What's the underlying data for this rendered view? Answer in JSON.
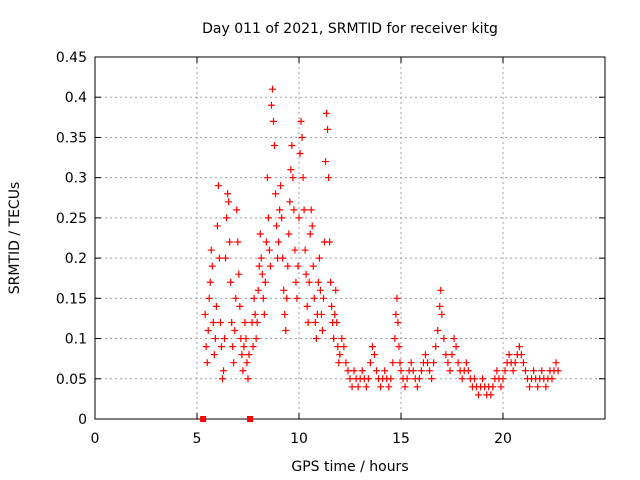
{
  "chart_data": {
    "type": "scatter",
    "title": "Day 011 of 2021, SRMTID for receiver kitg",
    "xlabel": "GPS time / hours",
    "ylabel": "SRMTID / TECUs",
    "xlim": [
      0,
      25
    ],
    "ylim": [
      0,
      0.45
    ],
    "grid": true,
    "x_ticks": [
      0,
      5,
      10,
      15,
      20
    ],
    "x_tick_labels": [
      "0",
      "5",
      "10",
      "15",
      "20"
    ],
    "y_ticks": [
      0,
      0.05,
      0.1,
      0.15,
      0.2,
      0.25,
      0.3,
      0.35,
      0.4,
      0.45
    ],
    "y_tick_labels": [
      "0",
      "0.05",
      "0.1",
      "0.15",
      "0.2",
      "0.25",
      "0.3",
      "0.35",
      "0.4",
      "0.45"
    ],
    "marker_color": "#ff0000",
    "data_gap_markers": [
      {
        "x": 5.3,
        "y": 0
      },
      {
        "x": 7.6,
        "y": 0
      }
    ],
    "series": [
      {
        "name": "SRMTID",
        "points": [
          [
            5.4,
            0.13
          ],
          [
            5.45,
            0.09
          ],
          [
            5.5,
            0.07
          ],
          [
            5.55,
            0.11
          ],
          [
            5.6,
            0.15
          ],
          [
            5.65,
            0.17
          ],
          [
            5.7,
            0.21
          ],
          [
            5.75,
            0.19
          ],
          [
            5.8,
            0.12
          ],
          [
            5.85,
            0.08
          ],
          [
            5.9,
            0.1
          ],
          [
            5.95,
            0.14
          ],
          [
            6.0,
            0.24
          ],
          [
            6.05,
            0.29
          ],
          [
            6.1,
            0.2
          ],
          [
            6.15,
            0.12
          ],
          [
            6.2,
            0.09
          ],
          [
            6.25,
            0.05
          ],
          [
            6.3,
            0.06
          ],
          [
            6.35,
            0.1
          ],
          [
            6.4,
            0.2
          ],
          [
            6.45,
            0.25
          ],
          [
            6.5,
            0.28
          ],
          [
            6.55,
            0.27
          ],
          [
            6.6,
            0.22
          ],
          [
            6.65,
            0.17
          ],
          [
            6.7,
            0.12
          ],
          [
            6.75,
            0.09
          ],
          [
            6.8,
            0.07
          ],
          [
            6.85,
            0.11
          ],
          [
            6.9,
            0.15
          ],
          [
            6.95,
            0.26
          ],
          [
            7.0,
            0.22
          ],
          [
            7.05,
            0.18
          ],
          [
            7.1,
            0.14
          ],
          [
            7.15,
            0.1
          ],
          [
            7.2,
            0.08
          ],
          [
            7.25,
            0.06
          ],
          [
            7.3,
            0.09
          ],
          [
            7.35,
            0.12
          ],
          [
            7.4,
            0.1
          ],
          [
            7.45,
            0.07
          ],
          [
            7.5,
            0.05
          ],
          [
            7.55,
            0.08
          ],
          [
            7.7,
            0.12
          ],
          [
            7.75,
            0.09
          ],
          [
            7.8,
            0.15
          ],
          [
            7.85,
            0.13
          ],
          [
            7.9,
            0.1
          ],
          [
            7.95,
            0.12
          ],
          [
            8.0,
            0.16
          ],
          [
            8.05,
            0.19
          ],
          [
            8.1,
            0.23
          ],
          [
            8.15,
            0.2
          ],
          [
            8.2,
            0.18
          ],
          [
            8.25,
            0.15
          ],
          [
            8.3,
            0.13
          ],
          [
            8.35,
            0.17
          ],
          [
            8.4,
            0.22
          ],
          [
            8.45,
            0.3
          ],
          [
            8.5,
            0.25
          ],
          [
            8.55,
            0.21
          ],
          [
            8.6,
            0.19
          ],
          [
            8.65,
            0.39
          ],
          [
            8.7,
            0.41
          ],
          [
            8.75,
            0.37
          ],
          [
            8.8,
            0.34
          ],
          [
            8.85,
            0.28
          ],
          [
            8.9,
            0.24
          ],
          [
            8.95,
            0.2
          ],
          [
            9.0,
            0.22
          ],
          [
            9.05,
            0.26
          ],
          [
            9.1,
            0.29
          ],
          [
            9.15,
            0.25
          ],
          [
            9.2,
            0.2
          ],
          [
            9.25,
            0.16
          ],
          [
            9.3,
            0.13
          ],
          [
            9.35,
            0.11
          ],
          [
            9.4,
            0.15
          ],
          [
            9.45,
            0.19
          ],
          [
            9.5,
            0.23
          ],
          [
            9.55,
            0.27
          ],
          [
            9.6,
            0.31
          ],
          [
            9.65,
            0.34
          ],
          [
            9.7,
            0.3
          ],
          [
            9.75,
            0.26
          ],
          [
            9.8,
            0.21
          ],
          [
            9.85,
            0.17
          ],
          [
            9.9,
            0.15
          ],
          [
            9.95,
            0.19
          ],
          [
            10.0,
            0.25
          ],
          [
            10.05,
            0.33
          ],
          [
            10.1,
            0.37
          ],
          [
            10.15,
            0.35
          ],
          [
            10.2,
            0.3
          ],
          [
            10.25,
            0.26
          ],
          [
            10.3,
            0.21
          ],
          [
            10.35,
            0.18
          ],
          [
            10.4,
            0.14
          ],
          [
            10.45,
            0.12
          ],
          [
            10.5,
            0.17
          ],
          [
            10.55,
            0.23
          ],
          [
            10.6,
            0.26
          ],
          [
            10.65,
            0.24
          ],
          [
            10.7,
            0.19
          ],
          [
            10.75,
            0.15
          ],
          [
            10.8,
            0.12
          ],
          [
            10.85,
            0.1
          ],
          [
            10.9,
            0.13
          ],
          [
            10.95,
            0.17
          ],
          [
            11.0,
            0.2
          ],
          [
            11.05,
            0.16
          ],
          [
            11.1,
            0.13
          ],
          [
            11.15,
            0.11
          ],
          [
            11.2,
            0.15
          ],
          [
            11.25,
            0.22
          ],
          [
            11.3,
            0.32
          ],
          [
            11.35,
            0.38
          ],
          [
            11.4,
            0.36
          ],
          [
            11.45,
            0.3
          ],
          [
            11.5,
            0.22
          ],
          [
            11.55,
            0.17
          ],
          [
            11.6,
            0.14
          ],
          [
            11.65,
            0.12
          ],
          [
            11.7,
            0.1
          ],
          [
            11.75,
            0.13
          ],
          [
            11.8,
            0.16
          ],
          [
            11.85,
            0.12
          ],
          [
            11.9,
            0.09
          ],
          [
            11.95,
            0.07
          ],
          [
            12.0,
            0.08
          ],
          [
            12.1,
            0.1
          ],
          [
            12.2,
            0.09
          ],
          [
            12.3,
            0.07
          ],
          [
            12.4,
            0.06
          ],
          [
            12.5,
            0.05
          ],
          [
            12.6,
            0.04
          ],
          [
            12.7,
            0.06
          ],
          [
            12.8,
            0.05
          ],
          [
            12.9,
            0.04
          ],
          [
            13.0,
            0.05
          ],
          [
            13.1,
            0.06
          ],
          [
            13.2,
            0.05
          ],
          [
            13.3,
            0.04
          ],
          [
            13.4,
            0.05
          ],
          [
            13.5,
            0.07
          ],
          [
            13.6,
            0.09
          ],
          [
            13.7,
            0.08
          ],
          [
            13.8,
            0.06
          ],
          [
            13.9,
            0.05
          ],
          [
            14.0,
            0.04
          ],
          [
            14.1,
            0.05
          ],
          [
            14.2,
            0.06
          ],
          [
            14.3,
            0.05
          ],
          [
            14.4,
            0.04
          ],
          [
            14.5,
            0.05
          ],
          [
            14.6,
            0.07
          ],
          [
            14.7,
            0.1
          ],
          [
            14.75,
            0.13
          ],
          [
            14.8,
            0.15
          ],
          [
            14.85,
            0.12
          ],
          [
            14.9,
            0.09
          ],
          [
            14.95,
            0.07
          ],
          [
            15.0,
            0.06
          ],
          [
            15.1,
            0.05
          ],
          [
            15.2,
            0.04
          ],
          [
            15.3,
            0.05
          ],
          [
            15.4,
            0.06
          ],
          [
            15.5,
            0.07
          ],
          [
            15.6,
            0.06
          ],
          [
            15.7,
            0.05
          ],
          [
            15.8,
            0.04
          ],
          [
            15.9,
            0.05
          ],
          [
            16.0,
            0.06
          ],
          [
            16.1,
            0.07
          ],
          [
            16.2,
            0.08
          ],
          [
            16.3,
            0.07
          ],
          [
            16.4,
            0.06
          ],
          [
            16.5,
            0.05
          ],
          [
            16.6,
            0.07
          ],
          [
            16.7,
            0.09
          ],
          [
            16.8,
            0.11
          ],
          [
            16.9,
            0.14
          ],
          [
            16.95,
            0.16
          ],
          [
            17.0,
            0.13
          ],
          [
            17.1,
            0.1
          ],
          [
            17.2,
            0.08
          ],
          [
            17.3,
            0.07
          ],
          [
            17.4,
            0.06
          ],
          [
            17.5,
            0.08
          ],
          [
            17.6,
            0.1
          ],
          [
            17.7,
            0.09
          ],
          [
            17.8,
            0.07
          ],
          [
            17.9,
            0.06
          ],
          [
            18.0,
            0.05
          ],
          [
            18.1,
            0.06
          ],
          [
            18.2,
            0.07
          ],
          [
            18.3,
            0.06
          ],
          [
            18.4,
            0.05
          ],
          [
            18.5,
            0.04
          ],
          [
            18.6,
            0.05
          ],
          [
            18.7,
            0.04
          ],
          [
            18.8,
            0.03
          ],
          [
            18.9,
            0.04
          ],
          [
            19.0,
            0.05
          ],
          [
            19.1,
            0.04
          ],
          [
            19.2,
            0.03
          ],
          [
            19.3,
            0.04
          ],
          [
            19.4,
            0.03
          ],
          [
            19.5,
            0.04
          ],
          [
            19.6,
            0.05
          ],
          [
            19.7,
            0.06
          ],
          [
            19.8,
            0.05
          ],
          [
            19.9,
            0.04
          ],
          [
            20.0,
            0.05
          ],
          [
            20.1,
            0.06
          ],
          [
            20.2,
            0.07
          ],
          [
            20.3,
            0.08
          ],
          [
            20.4,
            0.07
          ],
          [
            20.5,
            0.06
          ],
          [
            20.6,
            0.07
          ],
          [
            20.7,
            0.08
          ],
          [
            20.8,
            0.09
          ],
          [
            20.9,
            0.08
          ],
          [
            21.0,
            0.07
          ],
          [
            21.1,
            0.06
          ],
          [
            21.2,
            0.05
          ],
          [
            21.3,
            0.04
          ],
          [
            21.4,
            0.05
          ],
          [
            21.5,
            0.06
          ],
          [
            21.6,
            0.05
          ],
          [
            21.7,
            0.04
          ],
          [
            21.8,
            0.05
          ],
          [
            21.9,
            0.06
          ],
          [
            22.0,
            0.05
          ],
          [
            22.1,
            0.04
          ],
          [
            22.2,
            0.05
          ],
          [
            22.3,
            0.06
          ],
          [
            22.4,
            0.05
          ],
          [
            22.5,
            0.06
          ],
          [
            22.6,
            0.07
          ],
          [
            22.7,
            0.06
          ]
        ]
      }
    ]
  }
}
